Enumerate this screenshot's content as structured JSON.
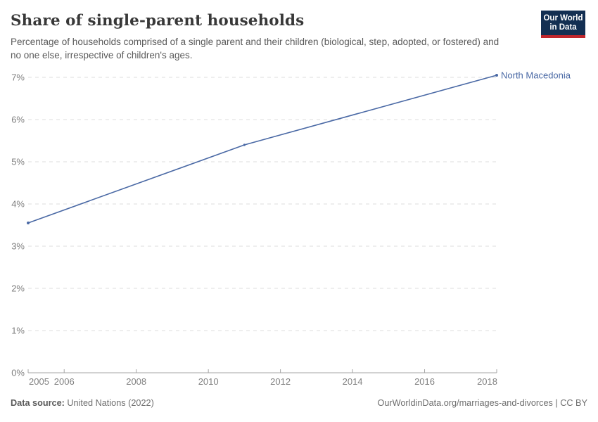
{
  "header": {
    "title": "Share of single-parent households",
    "subtitle": "Percentage of households comprised of a single parent and their children (biological, step, adopted, or fostered) and no one else, irrespective of children's ages.",
    "logo": {
      "line1": "Our World",
      "line2": "in Data",
      "bg_color": "#132f52",
      "accent_color": "#c0262c"
    }
  },
  "chart_data": {
    "type": "line",
    "title": "Share of single-parent households",
    "x": [
      2005,
      2011,
      2018
    ],
    "series": [
      {
        "name": "North Macedonia",
        "color": "#4a69a5",
        "values": [
          3.55,
          5.4,
          7.05
        ]
      }
    ],
    "xlabel": "",
    "ylabel": "",
    "xlim": [
      2005,
      2018
    ],
    "ylim": [
      0,
      7
    ],
    "x_ticks": [
      2005,
      2006,
      2008,
      2010,
      2012,
      2014,
      2016,
      2018
    ],
    "y_ticks": [
      0,
      1,
      2,
      3,
      4,
      5,
      6,
      7
    ],
    "y_tick_suffix": "%",
    "grid": "horizontal-dashed",
    "legend_position": "end-of-line-label",
    "colors": {
      "grid": "#dcdcdc",
      "axis": "#a5a5a5",
      "tick_label": "#808080"
    }
  },
  "footer": {
    "source_label": "Data source:",
    "source_value": "United Nations (2022)",
    "credit": "OurWorldinData.org/marriages-and-divorces | CC BY"
  }
}
